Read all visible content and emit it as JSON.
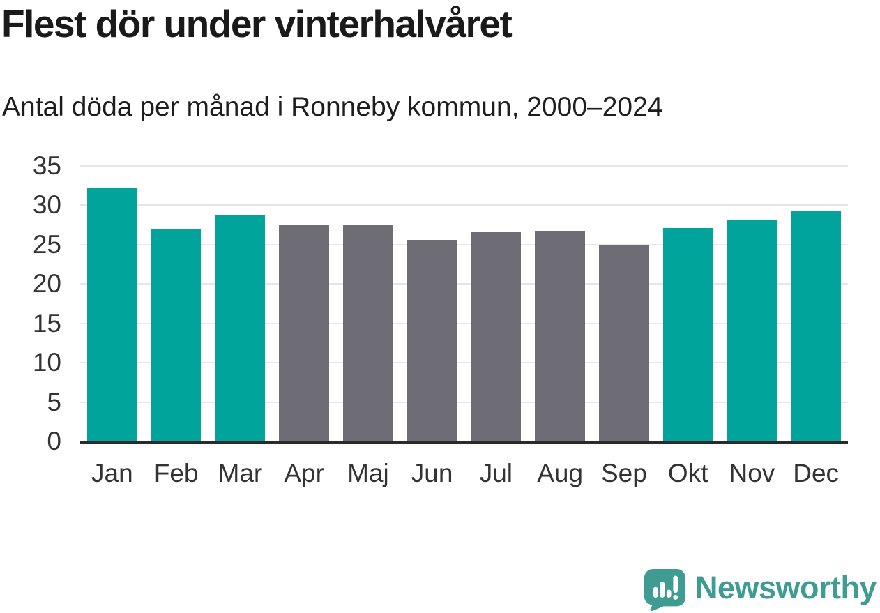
{
  "title": "Flest dör under vinterhalvåret",
  "subtitle": "Antal döda per månad i Ronneby kommun, 2000–2024",
  "branding": {
    "logo_text": "Newsworthy",
    "logo_icon": "speech-bubble-bar-chart-exclamation",
    "logo_color": "#3e9c92"
  },
  "colors": {
    "highlight_teal": "#00a49b",
    "neutral_gray": "#6e6c75",
    "gridline": "#e6e6e6",
    "axis": "#2b2b2b",
    "title_text": "#1a1a1a",
    "tick_text": "#333333",
    "background": "#ffffff"
  },
  "chart_data": {
    "type": "bar",
    "title": "Flest dör under vinterhalvåret",
    "subtitle": "Antal döda per månad i Ronneby kommun, 2000–2024",
    "categories": [
      "Jan",
      "Feb",
      "Mar",
      "Apr",
      "Maj",
      "Jun",
      "Jul",
      "Aug",
      "Sep",
      "Okt",
      "Nov",
      "Dec"
    ],
    "values": [
      32.2,
      27.0,
      28.7,
      27.6,
      27.5,
      25.6,
      26.7,
      26.8,
      24.9,
      27.1,
      28.1,
      29.3
    ],
    "bar_colors": [
      "#00a49b",
      "#00a49b",
      "#00a49b",
      "#6e6c75",
      "#6e6c75",
      "#6e6c75",
      "#6e6c75",
      "#6e6c75",
      "#6e6c75",
      "#00a49b",
      "#00a49b",
      "#00a49b"
    ],
    "xlabel": "",
    "ylabel": "",
    "ylim": [
      0,
      35
    ],
    "yticks": [
      0,
      5,
      10,
      15,
      20,
      25,
      30,
      35
    ],
    "grid": true,
    "legend": false,
    "legend_note": "teal = winter half-year months (Okt–Mar), gray = summer half-year (Apr–Sep)"
  }
}
